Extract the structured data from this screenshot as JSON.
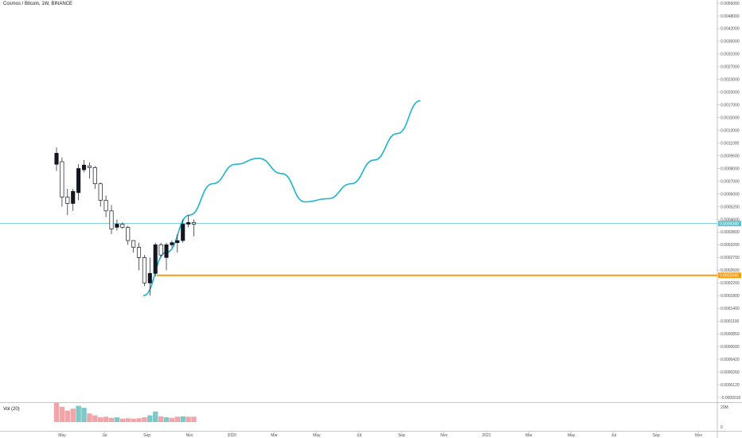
{
  "chart_data": {
    "type": "candlestick",
    "title": "Cosmos / Bitcoin, 1W, BINANCE",
    "volume_label": "Vol (20)",
    "y_ticks": [
      "0.0056000",
      "0.0048000",
      "0.0042000",
      "0.0036000",
      "0.0031000",
      "0.0027000",
      "0.0023000",
      "0.0020000",
      "0.0017000",
      "0.0015000",
      "0.0013000",
      "0.0011000",
      "0.0009500",
      "0.0008000",
      "0.0007000",
      "0.0006000",
      "0.0005200",
      "0.0004600",
      "0.0003800",
      "0.0003200",
      "0.0002700",
      "0.0002600",
      "0.0002200",
      "0.0001800",
      "0.0001400",
      "0.0001100",
      "0.0000850",
      "0.0000600",
      "0.0000420",
      "0.0000260",
      "0.0000120",
      "-0.0000010"
    ],
    "x_ticks": [
      "May",
      "Jul",
      "Sep",
      "Nov",
      "2020",
      "Mar",
      "May",
      "Jul",
      "Sep",
      "Nov",
      "2021",
      "Mar",
      "May",
      "Jul",
      "Sep",
      "Nov"
    ],
    "volume_ticks": [
      "20M",
      "0"
    ],
    "current_price": "0.0004340",
    "support_level": "0.0002440",
    "candles": [
      {
        "o": 0.00085,
        "h": 0.00105,
        "l": 0.00078,
        "c": 0.00098
      },
      {
        "o": 0.00088,
        "h": 0.00093,
        "l": 0.00052,
        "c": 0.00058
      },
      {
        "o": 0.00058,
        "h": 0.00064,
        "l": 0.00048,
        "c": 0.00054
      },
      {
        "o": 0.00054,
        "h": 0.00064,
        "l": 0.0005,
        "c": 0.00062
      },
      {
        "o": 0.00061,
        "h": 0.00085,
        "l": 0.00056,
        "c": 0.0008
      },
      {
        "o": 0.00079,
        "h": 0.0009,
        "l": 0.00077,
        "c": 0.00084
      },
      {
        "o": 0.00083,
        "h": 0.00087,
        "l": 0.00072,
        "c": 0.00081
      },
      {
        "o": 0.00081,
        "h": 0.00083,
        "l": 0.00064,
        "c": 0.00068
      },
      {
        "o": 0.00068,
        "h": 0.00069,
        "l": 0.00052,
        "c": 0.00056
      },
      {
        "o": 0.00056,
        "h": 0.00059,
        "l": 0.00047,
        "c": 0.0005
      },
      {
        "o": 0.0005,
        "h": 0.00053,
        "l": 0.00037,
        "c": 0.0004
      },
      {
        "o": 0.00041,
        "h": 0.00046,
        "l": 0.00039,
        "c": 0.00043
      },
      {
        "o": 0.00043,
        "h": 0.00044,
        "l": 0.0004,
        "c": 0.00041
      },
      {
        "o": 0.00041,
        "h": 0.00042,
        "l": 0.00032,
        "c": 0.00034
      },
      {
        "o": 0.00034,
        "h": 0.00034,
        "l": 0.00029,
        "c": 0.00031
      },
      {
        "o": 0.00031,
        "h": 0.00033,
        "l": 0.00026,
        "c": 0.00027
      },
      {
        "o": 0.00027,
        "h": 0.00028,
        "l": 0.00021,
        "c": 0.00022
      },
      {
        "o": 0.00022,
        "h": 0.00027,
        "l": 0.00018,
        "c": 0.00025
      },
      {
        "o": 0.00025,
        "h": 0.00033,
        "l": 0.00024,
        "c": 0.00032
      },
      {
        "o": 0.00032,
        "h": 0.00033,
        "l": 0.00027,
        "c": 0.00028
      },
      {
        "o": 0.00027,
        "h": 0.00033,
        "l": 0.00026,
        "c": 0.00032
      },
      {
        "o": 0.00032,
        "h": 0.00034,
        "l": 0.00031,
        "c": 0.00033
      },
      {
        "o": 0.00033,
        "h": 0.00037,
        "l": 0.00029,
        "c": 0.00034
      },
      {
        "o": 0.00034,
        "h": 0.00046,
        "l": 0.00033,
        "c": 0.00043
      },
      {
        "o": 0.00043,
        "h": 0.00048,
        "l": 0.00041,
        "c": 0.00044
      },
      {
        "o": 0.00044,
        "h": 0.00046,
        "l": 0.00036,
        "c": 0.00043
      }
    ],
    "volumes": [
      {
        "v": 1.0,
        "up": false
      },
      {
        "v": 0.8,
        "up": false
      },
      {
        "v": 0.6,
        "up": false
      },
      {
        "v": 0.7,
        "up": false
      },
      {
        "v": 0.85,
        "up": true
      },
      {
        "v": 0.75,
        "up": true
      },
      {
        "v": 0.45,
        "up": false
      },
      {
        "v": 0.35,
        "up": false
      },
      {
        "v": 0.25,
        "up": false
      },
      {
        "v": 0.28,
        "up": false
      },
      {
        "v": 0.22,
        "up": false
      },
      {
        "v": 0.25,
        "up": true
      },
      {
        "v": 0.18,
        "up": false
      },
      {
        "v": 0.2,
        "up": false
      },
      {
        "v": 0.18,
        "up": false
      },
      {
        "v": 0.2,
        "up": false
      },
      {
        "v": 0.25,
        "up": false
      },
      {
        "v": 0.35,
        "up": true
      },
      {
        "v": 0.55,
        "up": true
      },
      {
        "v": 0.3,
        "up": false
      },
      {
        "v": 0.25,
        "up": true
      },
      {
        "v": 0.22,
        "up": false
      },
      {
        "v": 0.28,
        "up": false
      },
      {
        "v": 0.3,
        "up": true
      },
      {
        "v": 0.28,
        "up": false
      },
      {
        "v": 0.28,
        "up": false
      }
    ],
    "projection_path": [
      [
        0.00018,
        0
      ],
      [
        0.00029,
        1
      ],
      [
        0.00048,
        2
      ],
      [
        0.00068,
        3
      ],
      [
        0.00085,
        4
      ],
      [
        0.00092,
        5
      ],
      [
        0.00076,
        6
      ],
      [
        0.00055,
        7
      ],
      [
        0.00057,
        8
      ],
      [
        0.00068,
        9
      ],
      [
        0.0009,
        10
      ],
      [
        0.00125,
        11
      ],
      [
        0.0018,
        12
      ]
    ],
    "colors": {
      "projection": "#1ab4cc",
      "support": "#f59c11",
      "current_price": "#5bc3cf",
      "volume_up": "#7cc9c8",
      "volume_down": "#f1a5a9",
      "candle_up": "#ffffff",
      "candle_down": "#131722"
    }
  }
}
